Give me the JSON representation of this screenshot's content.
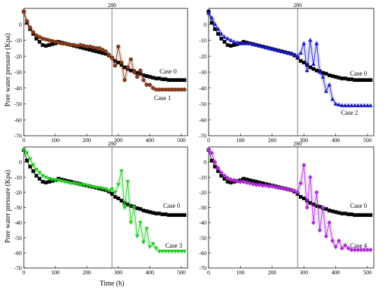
{
  "ylabel": "Pore water pressure (Kpa)",
  "xlabel": "Time (h)",
  "chart_data": [
    {
      "type": "line",
      "panel": "top-left",
      "vline": {
        "x": 280,
        "label": "280"
      },
      "xlim": [
        0,
        520
      ],
      "ylim": [
        -70,
        10
      ],
      "xticks": [
        0,
        100,
        200,
        300,
        400,
        500
      ],
      "yticks": [
        0,
        -10,
        -20,
        -30,
        -40,
        -50,
        -60,
        -70
      ],
      "series": [
        {
          "name": "Case 0",
          "color": "#000000",
          "marker": "square",
          "x": [
            0,
            10,
            20,
            30,
            40,
            50,
            60,
            70,
            80,
            90,
            100,
            110,
            120,
            130,
            140,
            150,
            160,
            170,
            180,
            190,
            200,
            210,
            220,
            230,
            240,
            250,
            260,
            270,
            280,
            290,
            300,
            310,
            320,
            330,
            340,
            350,
            360,
            370,
            380,
            390,
            400,
            410,
            420,
            430,
            440,
            450,
            460,
            470,
            480,
            490,
            500,
            510
          ],
          "y": [
            8,
            1,
            -3,
            -6,
            -9,
            -11,
            -13,
            -13.5,
            -13,
            -12.5,
            -12,
            -11,
            -11.5,
            -12,
            -12.5,
            -13,
            -13.5,
            -14,
            -14.5,
            -15,
            -15.5,
            -16,
            -16.5,
            -17,
            -17.5,
            -18,
            -18.5,
            -19.5,
            -21,
            -23,
            -24,
            -25.5,
            -27,
            -28,
            -29,
            -29.5,
            -30.5,
            -31,
            -32,
            -32.5,
            -33,
            -33.5,
            -34,
            -34,
            -34.5,
            -34.5,
            -35,
            -35,
            -35,
            -35,
            -35,
            -35
          ]
        },
        {
          "name": "Case 1",
          "color": "#8b3a1a",
          "marker": "circle",
          "x": [
            0,
            10,
            20,
            30,
            40,
            50,
            60,
            70,
            80,
            90,
            100,
            110,
            120,
            130,
            140,
            150,
            160,
            170,
            180,
            190,
            200,
            210,
            220,
            230,
            240,
            250,
            260,
            270,
            280,
            290,
            300,
            310,
            320,
            330,
            340,
            350,
            360,
            370,
            380,
            390,
            400,
            410,
            420,
            430,
            440,
            450,
            460,
            470,
            480,
            490,
            500,
            510
          ],
          "y": [
            8,
            2,
            -2,
            -5,
            -7,
            -8,
            -9,
            -9.5,
            -10,
            -10.5,
            -11,
            -11.5,
            -12,
            -12,
            -12.5,
            -13,
            -13,
            -13.5,
            -13,
            -13.5,
            -14,
            -14,
            -14.5,
            -15,
            -15,
            -16,
            -17,
            -19,
            -21,
            -26,
            -14,
            -24,
            -35,
            -27,
            -22,
            -30,
            -33,
            -29,
            -35,
            -38,
            -38,
            -40,
            -41,
            -41,
            -41,
            -41,
            -41,
            -41,
            -41,
            -41,
            -41,
            -41
          ]
        }
      ]
    },
    {
      "type": "line",
      "panel": "top-right",
      "vline": {
        "x": 280,
        "label": "280"
      },
      "xlim": [
        0,
        520
      ],
      "ylim": [
        -70,
        10
      ],
      "xticks": [
        0,
        100,
        200,
        300,
        400,
        500
      ],
      "yticks": [
        0,
        -10,
        -20,
        -30,
        -40,
        -50,
        -60,
        -70
      ],
      "series": [
        {
          "name": "Case 0",
          "color": "#000000",
          "marker": "square",
          "x": [
            0,
            10,
            20,
            30,
            40,
            50,
            60,
            70,
            80,
            90,
            100,
            110,
            120,
            130,
            140,
            150,
            160,
            170,
            180,
            190,
            200,
            210,
            220,
            230,
            240,
            250,
            260,
            270,
            280,
            290,
            300,
            310,
            320,
            330,
            340,
            350,
            360,
            370,
            380,
            390,
            400,
            410,
            420,
            430,
            440,
            450,
            460,
            470,
            480,
            490,
            500,
            510
          ],
          "y": [
            8,
            1,
            -3,
            -6,
            -9,
            -11,
            -13,
            -13.5,
            -13,
            -12.5,
            -12,
            -11,
            -11.5,
            -12,
            -12.5,
            -13,
            -13.5,
            -14,
            -14.5,
            -15,
            -15.5,
            -16,
            -16.5,
            -17,
            -17.5,
            -18,
            -18.5,
            -19.5,
            -21,
            -23,
            -24,
            -25.5,
            -27,
            -28,
            -29,
            -29.5,
            -30.5,
            -31,
            -32,
            -32.5,
            -33,
            -33.5,
            -34,
            -34,
            -34.5,
            -34.5,
            -35,
            -35,
            -35,
            -35,
            -35,
            -35
          ]
        },
        {
          "name": "Case 2",
          "color": "#1a1acc",
          "marker": "triangle-up",
          "x": [
            0,
            10,
            20,
            30,
            40,
            50,
            60,
            70,
            80,
            90,
            100,
            110,
            120,
            130,
            140,
            150,
            160,
            170,
            180,
            190,
            200,
            210,
            220,
            230,
            240,
            250,
            260,
            270,
            280,
            290,
            300,
            310,
            320,
            330,
            340,
            350,
            360,
            370,
            380,
            390,
            400,
            410,
            420,
            430,
            440,
            450,
            460,
            470,
            480,
            490,
            500,
            510
          ],
          "y": [
            7,
            4,
            0,
            -3,
            -6,
            -8,
            -9,
            -10,
            -11,
            -11.5,
            -12,
            -12,
            -12,
            -12,
            -12.5,
            -13,
            -13.5,
            -14,
            -14.5,
            -15,
            -15.5,
            -16,
            -16.5,
            -17,
            -17.5,
            -18,
            -18.5,
            -19,
            -20,
            -18,
            -12,
            -29,
            -10,
            -25,
            -12,
            -30,
            -33,
            -42,
            -38,
            -47,
            -50,
            -50.5,
            -51,
            -51,
            -51,
            -51,
            -51,
            -51,
            -51,
            -51,
            -51,
            -51
          ]
        }
      ]
    },
    {
      "type": "line",
      "panel": "bottom-left",
      "vline": {
        "x": 280,
        "label": "280"
      },
      "xlim": [
        0,
        520
      ],
      "ylim": [
        -70,
        10
      ],
      "xticks": [
        0,
        100,
        200,
        300,
        400,
        500
      ],
      "yticks": [
        0,
        -10,
        -20,
        -30,
        -40,
        -50,
        -60,
        -70
      ],
      "series": [
        {
          "name": "Case 0",
          "color": "#000000",
          "marker": "square",
          "x": [
            0,
            10,
            20,
            30,
            40,
            50,
            60,
            70,
            80,
            90,
            100,
            110,
            120,
            130,
            140,
            150,
            160,
            170,
            180,
            190,
            200,
            210,
            220,
            230,
            240,
            250,
            260,
            270,
            280,
            290,
            300,
            310,
            320,
            330,
            340,
            350,
            360,
            370,
            380,
            390,
            400,
            410,
            420,
            430,
            440,
            450,
            460,
            470,
            480,
            490,
            500,
            510
          ],
          "y": [
            8,
            1,
            -3,
            -6,
            -9,
            -11,
            -13,
            -13.5,
            -13,
            -12.5,
            -12,
            -11,
            -11.5,
            -12,
            -12.5,
            -13,
            -13.5,
            -14,
            -14.5,
            -15,
            -15.5,
            -16,
            -16.5,
            -17,
            -17.5,
            -18,
            -18.5,
            -19.5,
            -21,
            -23,
            -24,
            -25.5,
            -27,
            -28,
            -29,
            -29.5,
            -30.5,
            -31,
            -32,
            -32.5,
            -33,
            -33.5,
            -34,
            -34,
            -34.5,
            -34.5,
            -35,
            -35,
            -35,
            -35,
            -35,
            -35
          ]
        },
        {
          "name": "Case 3",
          "color": "#22cc22",
          "marker": "triangle-down",
          "x": [
            0,
            10,
            20,
            30,
            40,
            50,
            60,
            70,
            80,
            90,
            100,
            110,
            120,
            130,
            140,
            150,
            160,
            170,
            180,
            190,
            200,
            210,
            220,
            230,
            240,
            250,
            260,
            270,
            280,
            290,
            300,
            310,
            320,
            330,
            340,
            350,
            360,
            370,
            380,
            390,
            400,
            410,
            420,
            430,
            440,
            450,
            460,
            470,
            480,
            490,
            500,
            510
          ],
          "y": [
            8,
            6,
            2,
            -2,
            -5,
            -7,
            -9,
            -10,
            -11,
            -11.5,
            -12,
            -12,
            -12.5,
            -13,
            -13.5,
            -14,
            -14,
            -14.5,
            -15,
            -15,
            -15.5,
            -16,
            -16.5,
            -17,
            -17,
            -17.5,
            -18,
            -19,
            -18,
            -20,
            -15,
            -6,
            -30,
            -13,
            -40,
            -30,
            -49,
            -40,
            -53,
            -44,
            -56,
            -54,
            -57,
            -59,
            -59,
            -59,
            -59,
            -59,
            -59,
            -59,
            -59,
            -59
          ]
        }
      ]
    },
    {
      "type": "line",
      "panel": "bottom-right",
      "vline": {
        "x": 280,
        "label": "280"
      },
      "xlim": [
        0,
        520
      ],
      "ylim": [
        -70,
        10
      ],
      "xticks": [
        0,
        100,
        200,
        300,
        400,
        500
      ],
      "yticks": [
        0,
        -10,
        -20,
        -30,
        -40,
        -50,
        -60,
        -70
      ],
      "series": [
        {
          "name": "Case 0",
          "color": "#000000",
          "marker": "square",
          "x": [
            0,
            10,
            20,
            30,
            40,
            50,
            60,
            70,
            80,
            90,
            100,
            110,
            120,
            130,
            140,
            150,
            160,
            170,
            180,
            190,
            200,
            210,
            220,
            230,
            240,
            250,
            260,
            270,
            280,
            290,
            300,
            310,
            320,
            330,
            340,
            350,
            360,
            370,
            380,
            390,
            400,
            410,
            420,
            430,
            440,
            450,
            460,
            470,
            480,
            490,
            500,
            510
          ],
          "y": [
            8,
            1,
            -3,
            -6,
            -9,
            -11,
            -13,
            -13.5,
            -13,
            -12.5,
            -12,
            -11,
            -11.5,
            -12,
            -12.5,
            -13,
            -13.5,
            -14,
            -14.5,
            -15,
            -15.5,
            -16,
            -16.5,
            -17,
            -17.5,
            -18,
            -18.5,
            -19.5,
            -21,
            -23,
            -24,
            -25.5,
            -27,
            -28,
            -29,
            -29.5,
            -30.5,
            -31,
            -32,
            -32.5,
            -33,
            -33.5,
            -34,
            -34,
            -34.5,
            -34.5,
            -35,
            -35,
            -35,
            -35,
            -35,
            -35
          ]
        },
        {
          "name": "Case 4",
          "color": "#b02bd6",
          "marker": "diamond",
          "x": [
            0,
            10,
            20,
            30,
            40,
            50,
            60,
            70,
            80,
            90,
            100,
            110,
            120,
            130,
            140,
            150,
            160,
            170,
            180,
            190,
            200,
            210,
            220,
            230,
            240,
            250,
            260,
            270,
            280,
            290,
            300,
            310,
            320,
            330,
            340,
            350,
            360,
            370,
            380,
            390,
            400,
            410,
            420,
            430,
            440,
            450,
            460,
            470,
            480,
            490,
            500,
            510
          ],
          "y": [
            8,
            6,
            0,
            -4,
            -7,
            -9,
            -10.5,
            -11.5,
            -12,
            -12.5,
            -13,
            -13,
            -13.5,
            -14,
            -14.5,
            -15,
            -15,
            -15.5,
            -15.5,
            -16,
            -16,
            -16.5,
            -17,
            -17,
            -17.5,
            -18,
            -18.5,
            -19,
            -20,
            -14,
            -2,
            -30,
            -10,
            -40,
            -20,
            -45,
            -30,
            -49,
            -40,
            -52,
            -56,
            -52,
            -57,
            -55,
            -57,
            -58,
            -58,
            -58,
            -58,
            -58,
            -58,
            -58
          ]
        }
      ]
    }
  ]
}
